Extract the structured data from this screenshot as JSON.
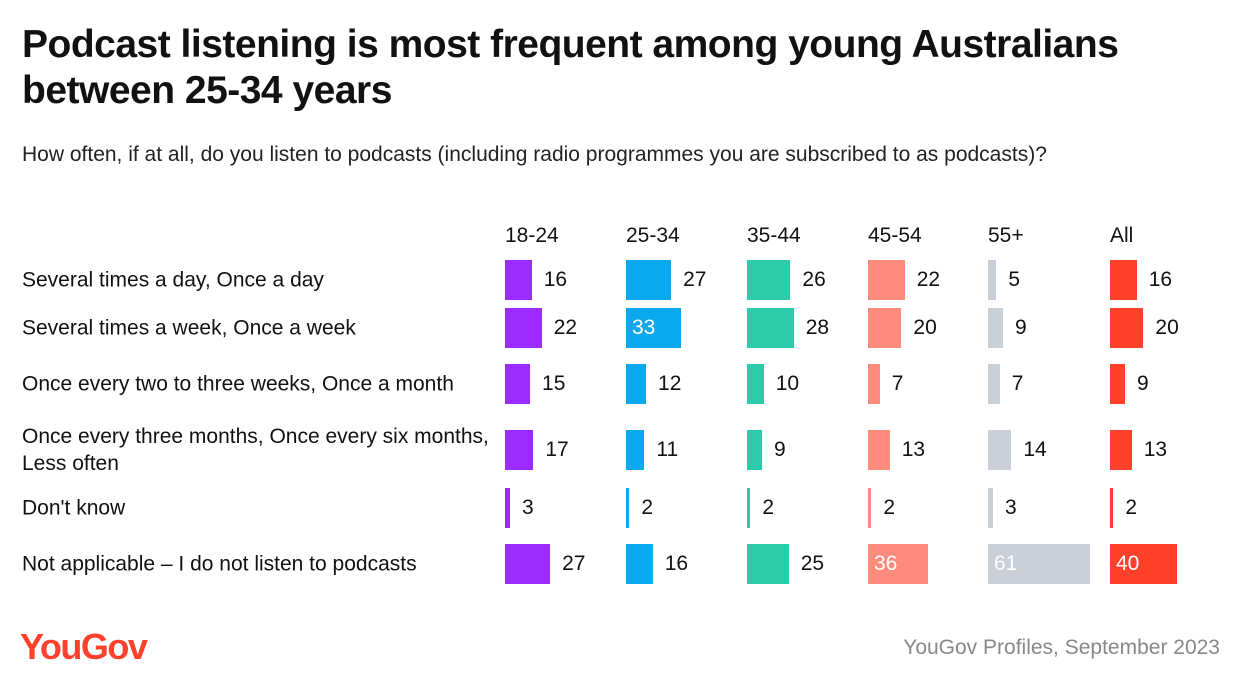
{
  "chart_data": {
    "type": "bar",
    "title": "Podcast listening is most frequent among young Australians between 25-34 years",
    "subtitle": "How often, if at all, do you listen to podcasts (including radio programmes you are subscribed to as podcasts)?",
    "categories": [
      "Several times a day, Once a day",
      "Several times a week, Once a week",
      "Once every two to three weeks, Once a month",
      "Once every three months, Once every six months, Less often",
      "Don't know",
      "Not applicable – I do not listen to podcasts"
    ],
    "series": [
      {
        "name": "18-24",
        "color": "#9b2bff",
        "values": [
          16,
          22,
          15,
          17,
          3,
          27
        ]
      },
      {
        "name": "25-34",
        "color": "#0aa8ec",
        "values": [
          27,
          33,
          12,
          11,
          2,
          16
        ]
      },
      {
        "name": "35-44",
        "color": "#2ecbaa",
        "values": [
          26,
          28,
          10,
          9,
          2,
          25
        ]
      },
      {
        "name": "45-54",
        "color": "#ff8a7e",
        "values": [
          22,
          20,
          7,
          13,
          2,
          36
        ]
      },
      {
        "name": "55+",
        "color": "#cbcfd8",
        "values": [
          5,
          9,
          7,
          14,
          3,
          61
        ]
      },
      {
        "name": "All",
        "color": "#ff412c",
        "values": [
          16,
          20,
          9,
          13,
          2,
          40
        ]
      }
    ],
    "unit": "%"
  },
  "footer": {
    "logo": "YouGov",
    "source": "YouGov Profiles, September 2023"
  }
}
